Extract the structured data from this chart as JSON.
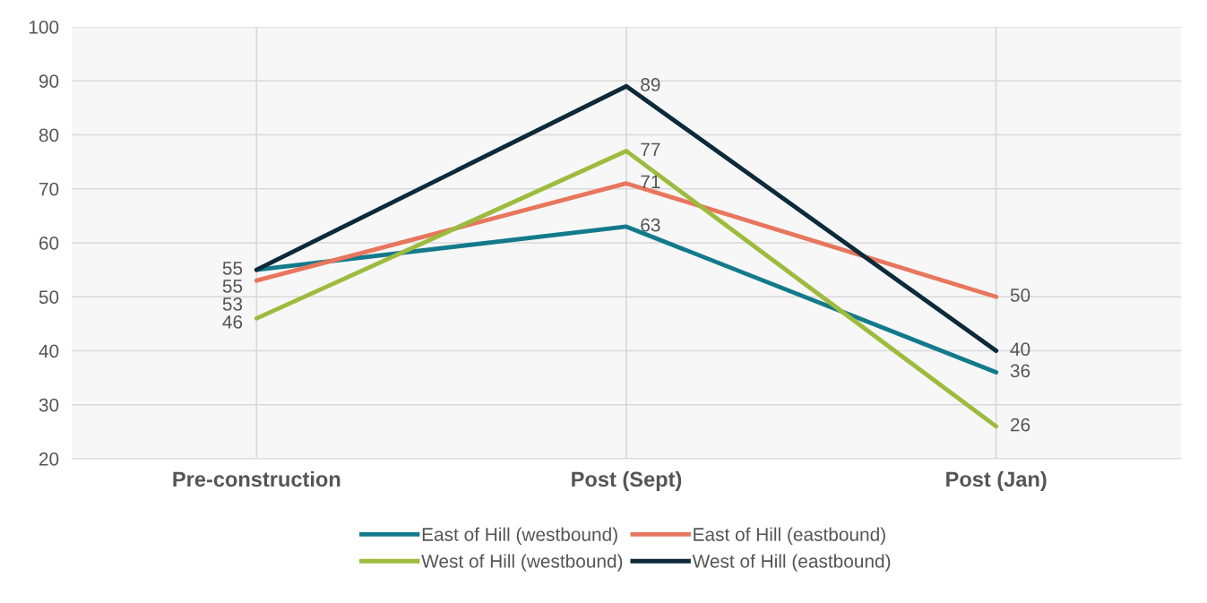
{
  "chart_data": {
    "type": "line",
    "categories": [
      "Pre-construction",
      "Post (Sept)",
      "Post (Jan)"
    ],
    "series": [
      {
        "name": "East of Hill (westbound)",
        "color": "#137a8c",
        "values": [
          55,
          63,
          36
        ]
      },
      {
        "name": "East of Hill (eastbound)",
        "color": "#e8765d",
        "values": [
          53,
          71,
          50
        ]
      },
      {
        "name": "West of Hill (westbound)",
        "color": "#9dbb3d",
        "values": [
          46,
          77,
          26
        ]
      },
      {
        "name": "West of Hill (eastbound)",
        "color": "#0d2a3a",
        "values": [
          55,
          89,
          40
        ]
      }
    ],
    "ylim": [
      20,
      100
    ],
    "yticks": [
      20,
      30,
      40,
      50,
      60,
      70,
      80,
      90,
      100
    ],
    "grid": true,
    "legend": "bottom",
    "data_labels": true,
    "marker": "none",
    "line_style": "solid"
  }
}
